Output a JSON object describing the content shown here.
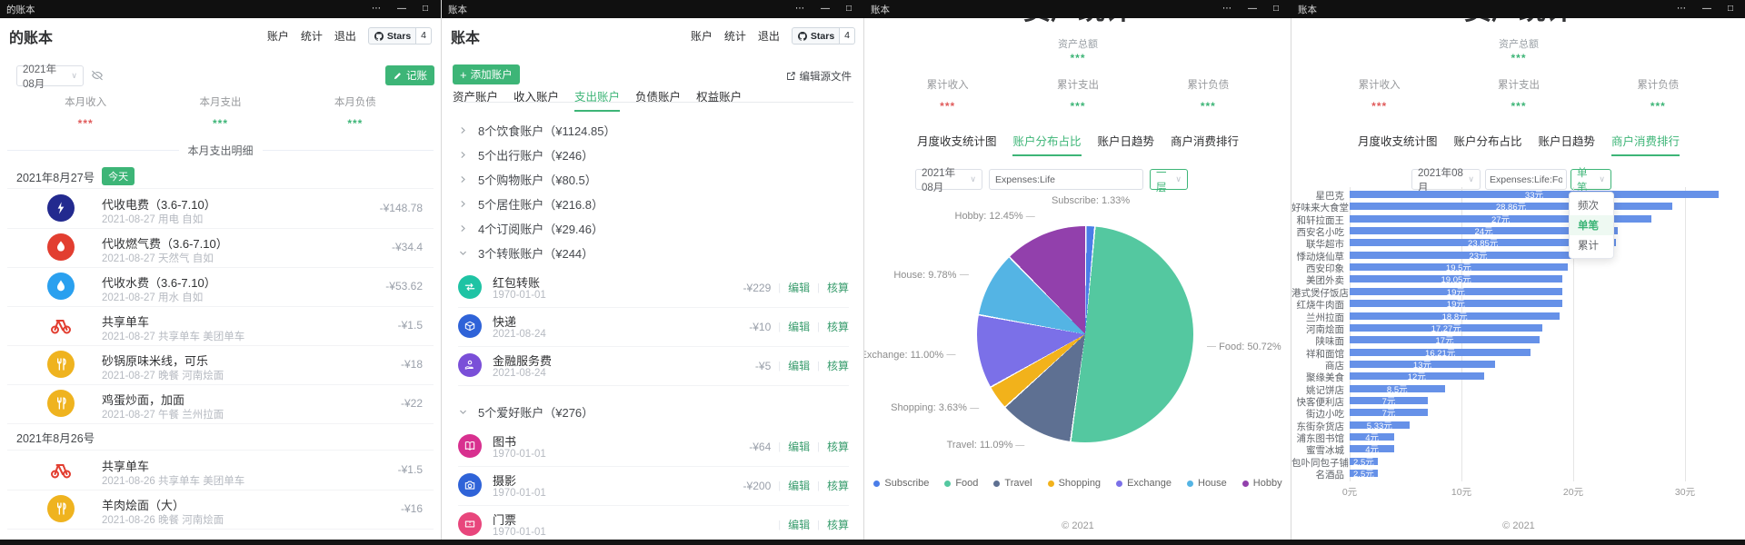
{
  "accent": "#3db577",
  "windows": [
    {
      "id": "ledger",
      "titlebar": {
        "title": "的账本",
        "controls": [
          "⋯",
          "—",
          "□"
        ]
      },
      "header": {
        "h1": "的账本",
        "menu": [
          "账户",
          "统计",
          "退出"
        ],
        "stars_label": "Stars",
        "stars_count": "4"
      },
      "toolbar": {
        "month": "2021年08月",
        "record_label": "记账"
      },
      "stats": [
        {
          "label": "本月收入",
          "value": "***",
          "color": "#e05b5b"
        },
        {
          "label": "本月支出",
          "value": "***",
          "color": "#3db577"
        },
        {
          "label": "本月负债",
          "value": "***",
          "color": "#3db577"
        }
      ],
      "section_divider": "本月支出明细",
      "groups": [
        {
          "date": "2021年8月27号",
          "badge": "今天",
          "items": [
            {
              "icon": "lightning-icon",
              "icon_bg": "#232a8f",
              "title": "代收电费（3.6-7.10）",
              "subtitle": "2021-08-27 用电 自如",
              "amount": "-¥148.78"
            },
            {
              "icon": "flame-icon",
              "icon_bg": "#e23e30",
              "title": "代收燃气费（3.6-7.10）",
              "subtitle": "2021-08-27 天然气 自如",
              "amount": "-¥34.4"
            },
            {
              "icon": "drop-icon",
              "icon_bg": "#2aa0ef",
              "title": "代收水费（3.6-7.10）",
              "subtitle": "2021-08-27 用水 自如",
              "amount": "-¥53.62"
            },
            {
              "icon": "bike-icon",
              "icon_bg": "none",
              "title": "共享单车",
              "subtitle": "2021-08-27 共享单车 美团单车",
              "amount": "-¥1.5"
            },
            {
              "icon": "utensils-icon",
              "icon_bg": "#efb31f",
              "title": "砂锅原味米线，可乐",
              "subtitle": "2021-08-27 晚餐 河南烩面",
              "amount": "-¥18"
            },
            {
              "icon": "utensils-icon",
              "icon_bg": "#efb31f",
              "title": "鸡蛋炒面，加面",
              "subtitle": "2021-08-27 午餐 兰州拉面",
              "amount": "-¥22"
            }
          ]
        },
        {
          "date": "2021年8月26号",
          "badge": "",
          "items": [
            {
              "icon": "bike-icon",
              "icon_bg": "none",
              "title": "共享单车",
              "subtitle": "2021-08-26 共享单车 美团单车",
              "amount": "-¥1.5"
            },
            {
              "icon": "utensils-icon",
              "icon_bg": "#efb31f",
              "title": "羊肉烩面（大）",
              "subtitle": "2021-08-26 晚餐 河南烩面",
              "amount": "-¥16"
            }
          ]
        }
      ]
    },
    {
      "id": "accounts",
      "titlebar": {
        "title": "账本",
        "controls": [
          "⋯",
          "—",
          "□"
        ]
      },
      "header": {
        "h1": "账本",
        "menu": [
          "账户",
          "统计",
          "退出"
        ],
        "stars_label": "Stars",
        "stars_count": "4"
      },
      "toolbar": {
        "add_label": "添加账户",
        "edit_source_label": "编辑源文件"
      },
      "tabs": [
        "资产账户",
        "收入账户",
        "支出账户",
        "负债账户",
        "权益账户"
      ],
      "active_tab": 2,
      "rows": [
        {
          "type": "group",
          "expanded": false,
          "label": "8个饮食账户（¥1124.85）"
        },
        {
          "type": "group",
          "expanded": false,
          "label": "5个出行账户（¥246）"
        },
        {
          "type": "group",
          "expanded": false,
          "label": "5个购物账户（¥80.5）"
        },
        {
          "type": "group",
          "expanded": false,
          "label": "5个居住账户（¥216.8）"
        },
        {
          "type": "group",
          "expanded": false,
          "label": "4个订阅账户（¥29.46）"
        },
        {
          "type": "group",
          "expanded": true,
          "label": "3个转账账户（¥244）"
        },
        {
          "type": "item",
          "icon": "transfer-icon",
          "icon_bg": "#1fc3a4",
          "name": "红包转账",
          "date": "1970-01-01",
          "amount": "-¥229",
          "actions": [
            "编辑",
            "核算"
          ]
        },
        {
          "type": "item",
          "icon": "package-icon",
          "icon_bg": "#2f63d8",
          "name": "快递",
          "date": "2021-08-24",
          "amount": "-¥10",
          "actions": [
            "编辑",
            "核算"
          ]
        },
        {
          "type": "item",
          "icon": "coin-hand-icon",
          "icon_bg": "#7a4fd8",
          "name": "金融服务费",
          "date": "2021-08-24",
          "amount": "-¥5",
          "actions": [
            "编辑",
            "核算"
          ]
        },
        {
          "type": "group",
          "expanded": true,
          "label": "5个爱好账户（¥276）"
        },
        {
          "type": "item",
          "icon": "book-icon",
          "icon_bg": "#d8308f",
          "name": "图书",
          "date": "1970-01-01",
          "amount": "-¥64",
          "actions": [
            "编辑",
            "核算"
          ]
        },
        {
          "type": "item",
          "icon": "camera-icon",
          "icon_bg": "#2f63d8",
          "name": "摄影",
          "date": "1970-01-01",
          "amount": "-¥200",
          "actions": [
            "编辑",
            "核算"
          ]
        },
        {
          "type": "item",
          "icon": "ticket-icon",
          "icon_bg": "#e8467c",
          "name": "门票",
          "date": "1970-01-01",
          "amount": "",
          "actions": [
            "编辑",
            "核算"
          ]
        }
      ]
    },
    {
      "id": "stats-pie",
      "titlebar": {
        "title": "账本",
        "controls": [
          "⋯",
          "—",
          "□"
        ]
      },
      "page_heading": "资产统计",
      "summary": {
        "label": "资产总额",
        "value": "***"
      },
      "stats": [
        {
          "label": "累计收入",
          "value": "***",
          "color": "#e05b5b"
        },
        {
          "label": "累计支出",
          "value": "***",
          "color": "#3db577"
        },
        {
          "label": "累计负债",
          "value": "***",
          "color": "#3db577"
        }
      ],
      "tabs": [
        "月度收支统计图",
        "账户分布占比",
        "账户日趋势",
        "商户消费排行"
      ],
      "active_tab": 1,
      "filters": {
        "month": "2021年08月",
        "query": "Expenses:Life",
        "mode": "一层"
      },
      "chart_data": {
        "type": "pie",
        "title": "账户分布占比",
        "series": [
          {
            "name": "Subscribe",
            "value": 1.33,
            "label": "Subscribe: 1.33%",
            "color": "#4a7de8"
          },
          {
            "name": "Food",
            "value": 50.72,
            "label": "Food: 50.72%",
            "color": "#54c8a0"
          },
          {
            "name": "Travel",
            "value": 11.09,
            "label": "Travel: 11.09%",
            "color": "#5e7092"
          },
          {
            "name": "Shopping",
            "value": 3.63,
            "label": "Shopping: 3.63%",
            "color": "#f2b21b"
          },
          {
            "name": "Exchange",
            "value": 11.0,
            "label": "Exchange: 11.00%",
            "color": "#7b70e8"
          },
          {
            "name": "House",
            "value": 9.78,
            "label": "House: 9.78%",
            "color": "#54b4e4"
          },
          {
            "name": "Hobby",
            "value": 12.45,
            "label": "Hobby: 12.45%",
            "color": "#9240ac"
          }
        ],
        "start_angle": "top",
        "clockwise": true,
        "legend_position": "bottom"
      },
      "footer": "© 2021"
    },
    {
      "id": "stats-bar",
      "titlebar": {
        "title": "账本",
        "controls": [
          "⋯",
          "—",
          "□"
        ]
      },
      "page_heading": "资产统计",
      "summary": {
        "label": "资产总额",
        "value": "***"
      },
      "stats": [
        {
          "label": "累计收入",
          "value": "***",
          "color": "#e05b5b"
        },
        {
          "label": "累计支出",
          "value": "***",
          "color": "#3db577"
        },
        {
          "label": "累计负债",
          "value": "***",
          "color": "#3db577"
        }
      ],
      "tabs": [
        "月度收支统计图",
        "账户分布占比",
        "账户日趋势",
        "商户消费排行"
      ],
      "active_tab": 3,
      "filters": {
        "month": "2021年08月",
        "query": "Expenses:Life:Food",
        "mode": "单笔"
      },
      "dropdown": {
        "options": [
          "频次",
          "单笔",
          "累计"
        ],
        "selected": "单笔"
      },
      "chart_data": {
        "type": "bar",
        "orientation": "horizontal",
        "title": "商户消费排行",
        "categories": [
          "星巴克",
          "好味来大食堂",
          "和轩拉面王",
          "西安名小吃",
          "联华超市",
          "悸动烧仙草",
          "西安印象",
          "美团外卖",
          "港式煲仔饭店",
          "红烧牛肉面",
          "兰州拉面",
          "河南烩面",
          "陕味面",
          "祥和面馆",
          "商店",
          "聚缘美食",
          "姚记饼店",
          "快客便利店",
          "街边小吃",
          "东街杂货店",
          "浦东图书馆",
          "蜜雪冰城",
          "包卟同包子铺",
          "名酒品"
        ],
        "values": [
          33,
          28.86,
          27,
          24,
          23.85,
          23,
          19.5,
          19.05,
          19,
          19,
          18.8,
          17.27,
          17,
          16.21,
          13,
          12,
          8.5,
          7,
          7,
          5.33,
          4,
          4,
          2.5,
          2.5
        ],
        "value_labels": [
          "33元",
          "28.86元",
          "27元",
          "24元",
          "23.85元",
          "23元",
          "19.5元",
          "19.05元",
          "19元",
          "19元",
          "18.8元",
          "17.27元",
          "17元",
          "16.21元",
          "13元",
          "12元",
          "8.5元",
          "7元",
          "7元",
          "5.33元",
          "4元",
          "4元",
          "2.5元",
          "2.5元"
        ],
        "x_ticks": [
          "0元",
          "10元",
          "20元",
          "30元"
        ],
        "xlim": [
          0,
          34
        ],
        "bar_color": "#6691e8",
        "grid": true
      },
      "footer": "© 2021"
    }
  ]
}
